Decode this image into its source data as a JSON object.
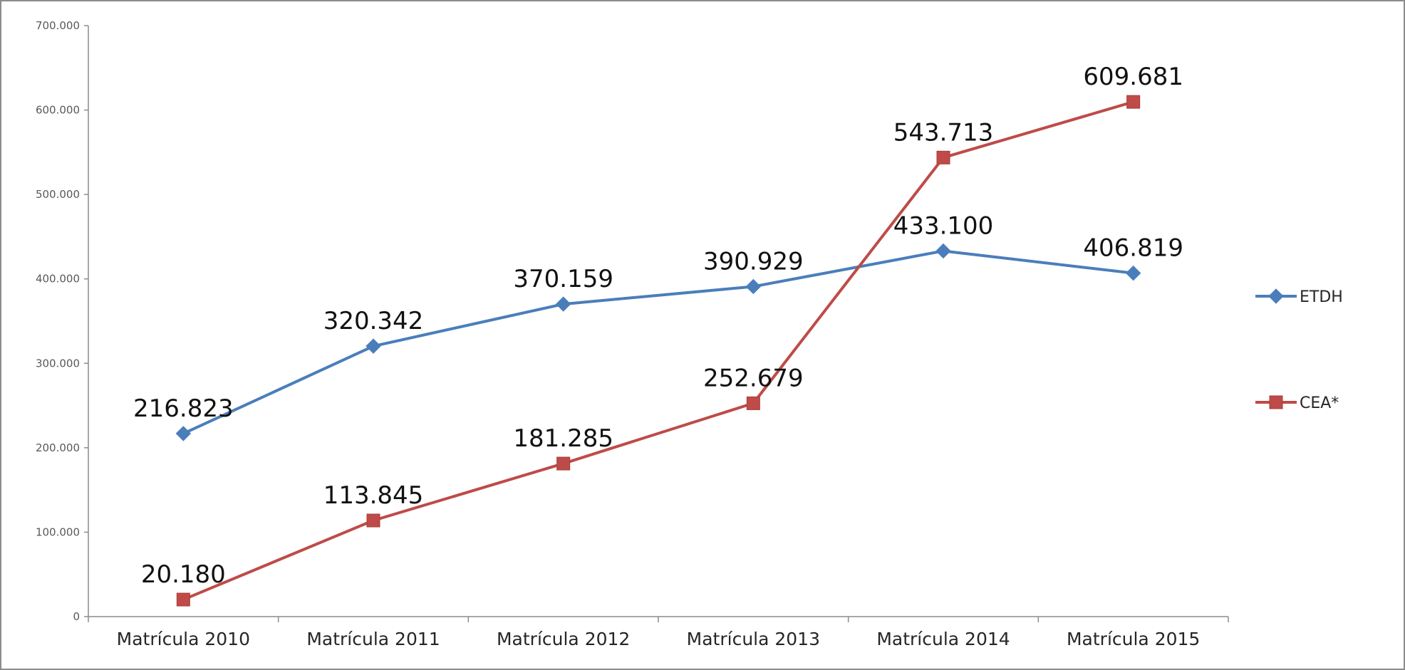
{
  "chart_data": {
    "type": "line",
    "categories": [
      "Matrícula 2010",
      "Matrícula 2011",
      "Matrícula 2012",
      "Matrícula 2013",
      "Matrícula 2014",
      "Matrícula 2015"
    ],
    "series": [
      {
        "name": "ETDH",
        "color": "#4a7ebb",
        "marker": "diamond",
        "values": [
          216823,
          320342,
          370159,
          390929,
          433100,
          406819
        ],
        "labels": [
          "216.823",
          "320.342",
          "370.159",
          "390.929",
          "433.100",
          "406.819"
        ]
      },
      {
        "name": "CEA*",
        "color": "#be4b48",
        "marker": "square",
        "values": [
          20180,
          113845,
          181285,
          252679,
          543713,
          609681
        ],
        "labels": [
          "20.180",
          "113.845",
          "181.285",
          "252.679",
          "543.713",
          "609.681"
        ]
      }
    ],
    "ylim": [
      0,
      700000
    ],
    "yticks": [
      0,
      100000,
      200000,
      300000,
      400000,
      500000,
      600000,
      700000
    ],
    "ytick_labels": [
      "0",
      "100.000",
      "200.000",
      "300.000",
      "400.000",
      "500.000",
      "600.000",
      "700.000"
    ],
    "grid": false,
    "legend_position": "right",
    "title": "",
    "xlabel": "",
    "ylabel": ""
  }
}
